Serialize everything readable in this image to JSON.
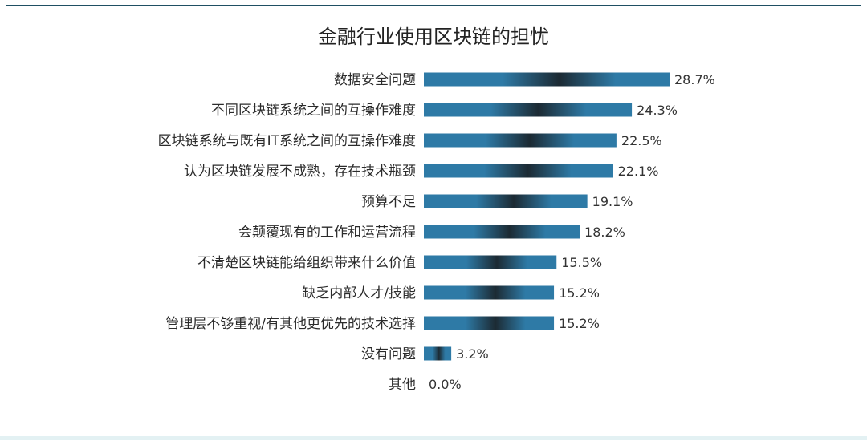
{
  "chart_data": {
    "type": "bar",
    "orientation": "horizontal",
    "title": "金融行业使用区块链的担忧",
    "categories": [
      "数据安全问题",
      "不同区块链系统之间的互操作难度",
      "区块链系统与既有IT系统之间的互操作难度",
      "认为区块链发展不成熟，存在技术瓶颈",
      "预算不足",
      "会颠覆现有的工作和运营流程",
      "不清楚区块链能给组织带来什么价值",
      "缺乏内部人才/技能",
      "管理层不够重视/有其他更优先的技术选择",
      "没有问题",
      "其他"
    ],
    "values": [
      28.7,
      24.3,
      22.5,
      22.1,
      19.1,
      18.2,
      15.5,
      15.2,
      15.2,
      3.2,
      0.0
    ],
    "value_labels": [
      "28.7%",
      "24.3%",
      "22.5%",
      "22.1%",
      "19.1%",
      "18.2%",
      "15.5%",
      "15.2%",
      "15.2%",
      "3.2%",
      "0.0%"
    ],
    "value_unit": "%",
    "xlim": [
      0,
      28.7
    ],
    "grid": false,
    "legend": "none",
    "bar_color": "#2e7aa6",
    "bar_shade_color": "#1c2a33"
  }
}
